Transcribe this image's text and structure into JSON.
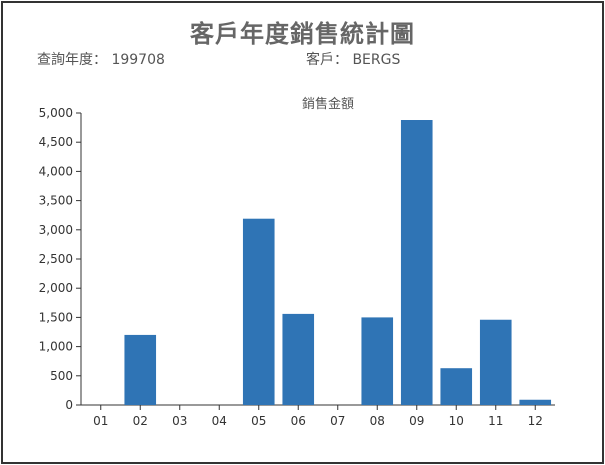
{
  "header": {
    "title": "客戶年度銷售統計圖",
    "year_label": "查詢年度：",
    "year_value": "199708",
    "customer_label": "客戶：",
    "customer_value": "BERGS"
  },
  "colors": {
    "bar": "#2f74b5",
    "axis": "#333333"
  },
  "chart_data": {
    "type": "bar",
    "title": "",
    "xlabel": "",
    "ylabel": "",
    "categories": [
      "01",
      "02",
      "03",
      "04",
      "05",
      "06",
      "07",
      "08",
      "09",
      "10",
      "11",
      "12"
    ],
    "series": [
      {
        "name": "銷售金額",
        "values": [
          0,
          1200,
          0,
          0,
          3190,
          1560,
          0,
          1500,
          4880,
          630,
          1460,
          90
        ]
      }
    ],
    "ylim": [
      0,
      5000
    ],
    "yticks": [
      "0",
      "500",
      "1,000",
      "1,500",
      "2,000",
      "2,500",
      "3,000",
      "3,500",
      "4,000",
      "4,500",
      "5,000"
    ],
    "grid": false,
    "legend": "top-center"
  }
}
